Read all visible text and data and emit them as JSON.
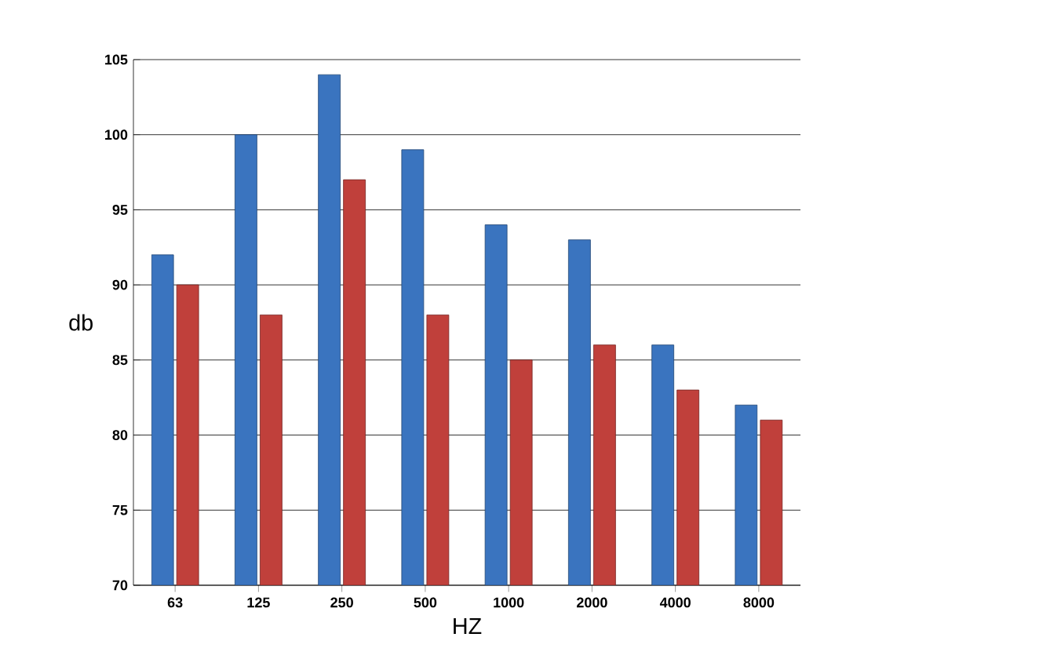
{
  "chart_data": {
    "type": "bar",
    "xlabel": "HZ",
    "ylabel": "db",
    "categories": [
      "63",
      "125",
      "250",
      "500",
      "1000",
      "2000",
      "4000",
      "8000"
    ],
    "series": [
      {
        "color": "#3a74bf",
        "values": [
          92,
          100,
          104,
          99,
          94,
          93,
          86,
          82
        ]
      },
      {
        "color": "#c0403b",
        "values": [
          90,
          88,
          97,
          88,
          85,
          86,
          83,
          81
        ]
      }
    ],
    "ylim": [
      70,
      105
    ],
    "yticks": [
      70,
      75,
      80,
      85,
      90,
      95,
      100,
      105
    ],
    "grid": "y"
  }
}
